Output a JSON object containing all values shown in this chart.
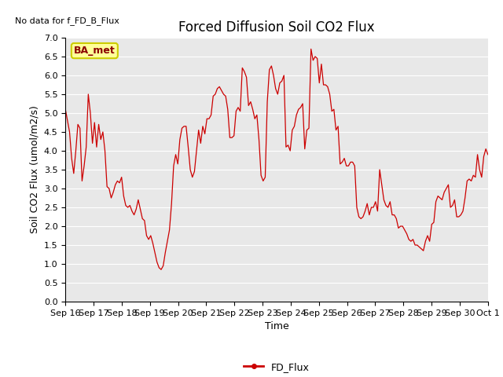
{
  "title": "Forced Diffusion Soil CO2 Flux",
  "top_left_text": "No data for f_FD_B_Flux",
  "xlabel": "Time",
  "ylabel": "Soil CO2 Flux (umol/m2/s)",
  "legend_label": "FD_Flux",
  "box_label": "BA_met",
  "ylim": [
    0.0,
    7.0
  ],
  "yticks": [
    0.0,
    0.5,
    1.0,
    1.5,
    2.0,
    2.5,
    3.0,
    3.5,
    4.0,
    4.5,
    5.0,
    5.5,
    6.0,
    6.5,
    7.0
  ],
  "line_color": "#cc0000",
  "background_color": "#e8e8e8",
  "box_bg": "#ffff99",
  "box_edge": "#cccc00",
  "title_fontsize": 12,
  "label_fontsize": 9,
  "tick_fontsize": 8,
  "xtick_labels": [
    "Sep 16",
    "Sep 17",
    "Sep 18",
    "Sep 19",
    "Sep 20",
    "Sep 21",
    "Sep 22",
    "Sep 23",
    "Sep 24",
    "Sep 25",
    "Sep 26",
    "Sep 27",
    "Sep 28",
    "Sep 29",
    "Sep 30",
    "Oct 1"
  ],
  "flux_data": [
    5.1,
    4.8,
    4.5,
    3.8,
    3.4,
    4.0,
    4.7,
    4.6,
    3.2,
    3.6,
    4.1,
    5.5,
    5.0,
    4.2,
    4.75,
    4.1,
    4.7,
    4.3,
    4.5,
    4.0,
    3.05,
    3.0,
    2.75,
    2.9,
    3.1,
    3.2,
    3.15,
    3.3,
    2.8,
    2.55,
    2.5,
    2.55,
    2.4,
    2.3,
    2.45,
    2.7,
    2.45,
    2.2,
    2.15,
    1.75,
    1.65,
    1.75,
    1.55,
    1.3,
    1.05,
    0.9,
    0.85,
    0.95,
    1.3,
    1.6,
    1.9,
    2.6,
    3.6,
    3.9,
    3.65,
    4.3,
    4.6,
    4.65,
    4.65,
    4.1,
    3.5,
    3.3,
    3.45,
    4.0,
    4.55,
    4.2,
    4.65,
    4.45,
    4.85,
    4.85,
    4.95,
    5.45,
    5.5,
    5.65,
    5.7,
    5.6,
    5.5,
    5.45,
    5.1,
    4.35,
    4.35,
    4.4,
    5.05,
    5.15,
    5.05,
    6.2,
    6.1,
    5.95,
    5.2,
    5.3,
    5.1,
    4.85,
    4.95,
    4.3,
    3.35,
    3.2,
    3.3,
    5.3,
    6.15,
    6.25,
    6.0,
    5.65,
    5.5,
    5.8,
    5.85,
    6.0,
    4.1,
    4.15,
    4.0,
    4.55,
    4.65,
    4.95,
    5.1,
    5.15,
    5.25,
    4.05,
    4.55,
    4.6,
    6.7,
    6.4,
    6.5,
    6.45,
    5.8,
    6.3,
    5.75,
    5.75,
    5.7,
    5.5,
    5.05,
    5.1,
    4.55,
    4.65,
    3.65,
    3.7,
    3.8,
    3.6,
    3.6,
    3.7,
    3.7,
    3.6,
    2.5,
    2.25,
    2.2,
    2.25,
    2.4,
    2.6,
    2.3,
    2.5,
    2.5,
    2.65,
    2.4,
    3.5,
    3.1,
    2.7,
    2.55,
    2.5,
    2.65,
    2.3,
    2.3,
    2.2,
    1.95,
    2.0,
    2.0,
    1.9,
    1.8,
    1.65,
    1.6,
    1.65,
    1.5,
    1.5,
    1.45,
    1.4,
    1.35,
    1.6,
    1.75,
    1.6,
    2.05,
    2.1,
    2.65,
    2.8,
    2.75,
    2.7,
    2.9,
    3.0,
    3.1,
    2.5,
    2.55,
    2.7,
    2.25,
    2.25,
    2.3,
    2.4,
    2.75,
    3.2,
    3.25,
    3.2,
    3.35,
    3.3,
    3.9,
    3.5,
    3.3,
    3.85,
    4.05,
    3.9
  ]
}
